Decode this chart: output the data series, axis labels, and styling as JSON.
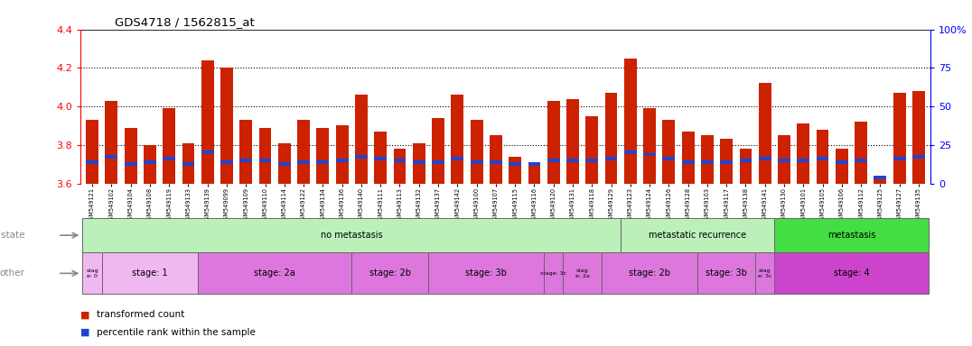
{
  "title": "GDS4718 / 1562815_at",
  "samples": [
    "GSM549121",
    "GSM549102",
    "GSM549104",
    "GSM549108",
    "GSM549119",
    "GSM549133",
    "GSM549139",
    "GSM549099",
    "GSM549109",
    "GSM549110",
    "GSM549114",
    "GSM549122",
    "GSM549134",
    "GSM549136",
    "GSM549140",
    "GSM549111",
    "GSM549113",
    "GSM549132",
    "GSM549137",
    "GSM549142",
    "GSM549100",
    "GSM549107",
    "GSM549115",
    "GSM549116",
    "GSM549120",
    "GSM549131",
    "GSM549118",
    "GSM549129",
    "GSM549123",
    "GSM549124",
    "GSM549126",
    "GSM549128",
    "GSM549103",
    "GSM549117",
    "GSM549138",
    "GSM549141",
    "GSM549130",
    "GSM549101",
    "GSM549105",
    "GSM549106",
    "GSM549112",
    "GSM549125",
    "GSM549127",
    "GSM549135"
  ],
  "red_values": [
    3.93,
    4.03,
    3.89,
    3.8,
    3.99,
    3.81,
    4.24,
    4.2,
    3.93,
    3.89,
    3.81,
    3.93,
    3.89,
    3.9,
    4.06,
    3.87,
    3.78,
    3.81,
    3.94,
    4.06,
    3.93,
    3.85,
    3.74,
    3.71,
    4.03,
    4.04,
    3.95,
    4.07,
    4.25,
    3.99,
    3.93,
    3.87,
    3.85,
    3.83,
    3.78,
    4.12,
    3.85,
    3.91,
    3.88,
    3.78,
    3.92,
    3.64,
    4.07,
    4.08
  ],
  "blue_values": [
    3.71,
    3.74,
    3.7,
    3.71,
    3.73,
    3.7,
    3.76,
    3.71,
    3.72,
    3.72,
    3.7,
    3.71,
    3.71,
    3.72,
    3.74,
    3.73,
    3.72,
    3.71,
    3.71,
    3.73,
    3.71,
    3.71,
    3.7,
    3.7,
    3.72,
    3.72,
    3.72,
    3.73,
    3.76,
    3.75,
    3.73,
    3.71,
    3.71,
    3.71,
    3.72,
    3.73,
    3.72,
    3.72,
    3.73,
    3.71,
    3.72,
    3.63,
    3.73,
    3.74
  ],
  "ylim": [
    3.6,
    4.4
  ],
  "yticks": [
    3.6,
    3.8,
    4.0,
    4.2,
    4.4
  ],
  "y2ticks": [
    0,
    25,
    50,
    75,
    100
  ],
  "bar_color_red": "#cc2200",
  "bar_color_blue": "#2244cc",
  "bar_width": 0.65,
  "disease_groups": [
    {
      "label": "no metastasis",
      "start": 0,
      "end": 28,
      "color": "#bbf0bb"
    },
    {
      "label": "metastatic recurrence",
      "start": 28,
      "end": 36,
      "color": "#bbf0bb"
    },
    {
      "label": "metastasis",
      "start": 36,
      "end": 44,
      "color": "#44dd44"
    }
  ],
  "stage_groups": [
    {
      "label": "stag\ne: 0",
      "start": 0,
      "end": 1
    },
    {
      "label": "stage: 1",
      "start": 1,
      "end": 6
    },
    {
      "label": "stage: 2a",
      "start": 6,
      "end": 14
    },
    {
      "label": "stage: 2b",
      "start": 14,
      "end": 18
    },
    {
      "label": "stage: 3b",
      "start": 18,
      "end": 24
    },
    {
      "label": "stage: 3c",
      "start": 24,
      "end": 25
    },
    {
      "label": "stag\ne: 2a",
      "start": 25,
      "end": 27
    },
    {
      "label": "stage: 2b",
      "start": 27,
      "end": 32
    },
    {
      "label": "stage: 3b",
      "start": 32,
      "end": 35
    },
    {
      "label": "stag\ne: 3c",
      "start": 35,
      "end": 36
    },
    {
      "label": "stage: 4",
      "start": 36,
      "end": 44
    }
  ],
  "stage_colors": {
    "light": "#f0b8f0",
    "mid": "#dd77dd",
    "dark": "#cc44cc"
  },
  "stage_color_map": [
    "light",
    "light",
    "mid",
    "mid",
    "mid",
    "mid",
    "mid",
    "mid",
    "mid",
    "mid",
    "dark"
  ],
  "legend_items": [
    {
      "label": "transformed count",
      "color": "#cc2200"
    },
    {
      "label": "percentile rank within the sample",
      "color": "#2244cc"
    }
  ]
}
